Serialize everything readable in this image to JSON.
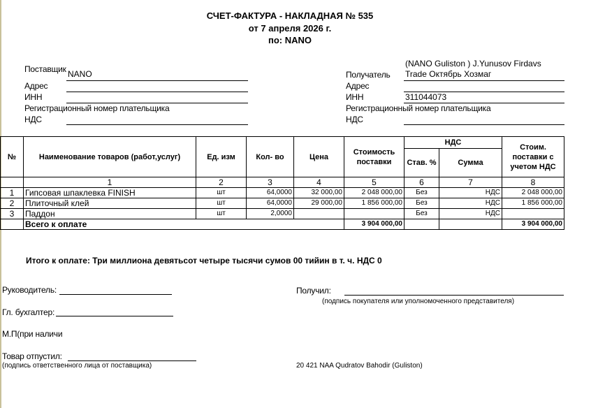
{
  "header": {
    "title": "СЧЕТ-ФАКТУРА - НАКЛАДНАЯ № 535",
    "date_line": "от 7 апреля 2026 г.",
    "by_line": "по: NANO"
  },
  "supplier": {
    "label": "Поставщик",
    "value": "NANO",
    "address_label": "Адрес",
    "inn_label": "ИНН",
    "reg_label": "Регистрационный номер плательщика",
    "nds_label": "НДС"
  },
  "recipient": {
    "label": "Получатель",
    "value_line1": "(NANO Guliston ) J.Yunusov  Firdavs",
    "value_line2": "Trade Октябрь Хозмаг",
    "address_label": "Адрес",
    "inn_label": "ИНН",
    "inn_value": "311044073",
    "reg_label": "Регистрационный номер плательщика",
    "nds_label": "НДС"
  },
  "table": {
    "headers": {
      "num": "№",
      "name": "Наименование товаров (работ,услуг)",
      "unit": "Ед. изм",
      "qty": "Кол- во",
      "price": "Цена",
      "cost": "Стоимость поставки",
      "nds": "НДС",
      "rate": "Став. %",
      "sum": "Сумма",
      "total": "Стоим. поставки с учетом НДС"
    },
    "col_numbers": [
      "1",
      "2",
      "3",
      "4",
      "5",
      "6",
      "7",
      "8"
    ],
    "rows": [
      {
        "num": "1",
        "name": "Гипсовая шпаклевка FINISH",
        "unit": "шт",
        "qty": "64,0000",
        "price": "32 000,00",
        "cost": "2 048 000,00",
        "rate": "Без",
        "sum": "НДС",
        "total": "2 048 000,00"
      },
      {
        "num": "2",
        "name": "Плиточный клей",
        "unit": "шт",
        "qty": "64,0000",
        "price": "29 000,00",
        "cost": "1 856 000,00",
        "rate": "Без",
        "sum": "НДС",
        "total": "1 856 000,00"
      },
      {
        "num": "3",
        "name": "Паддон",
        "unit": "шт",
        "qty": "2,0000",
        "price": "",
        "cost": "",
        "rate": "Без",
        "sum": "НДС",
        "total": ""
      }
    ],
    "total_label": "Всего к оплате",
    "total_cost": "3 904 000,00",
    "total_with_nds": "3 904 000,00"
  },
  "summary": "Итого к оплате: Три миллиона девятьсот четыре тысячи сумов 00 тийин  в т. ч. НДС 0",
  "signatures": {
    "director": "Руководитель:",
    "accountant": "Гл. бухгалтер:",
    "stamp": "М.П(при наличи",
    "released": "Товар  отпустил:",
    "released_caption": "(подпись ответственного лица от поставщика)",
    "received": "Получил:",
    "received_caption": "(подпись покупателя или уполномоченного представителя)",
    "agent": "20 421 NAA Qudratov Bahodir (Guliston)"
  }
}
